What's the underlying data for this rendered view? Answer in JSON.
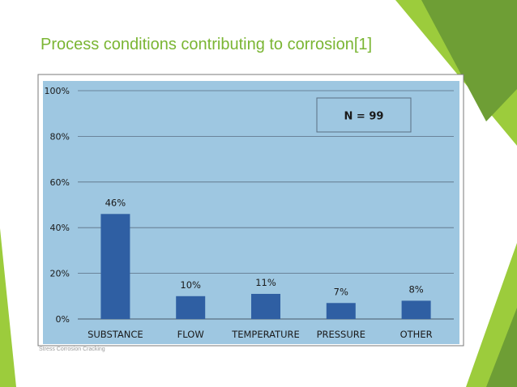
{
  "slide": {
    "title": "Process conditions contributing to corrosion[1]",
    "footer": "Stress Corrosion Cracking"
  },
  "colors": {
    "title": "#7ab533",
    "plot_background": "#9ec7e1",
    "bar": "#2f5fa3",
    "grid": "#5a6f82",
    "accent_green_dark": "#5d8f2f",
    "accent_green_light": "#9ccc3c"
  },
  "chart_data": {
    "type": "bar",
    "categories": [
      "SUBSTANCE",
      "FLOW",
      "TEMPERATURE",
      "PRESSURE",
      "OTHER"
    ],
    "values": [
      46,
      10,
      11,
      7,
      8
    ],
    "data_labels": [
      "46%",
      "10%",
      "11%",
      "7%",
      "8%"
    ],
    "ylim": [
      0,
      100
    ],
    "yticks": [
      "0%",
      "20%",
      "40%",
      "60%",
      "80%",
      "100%"
    ],
    "ytick_values": [
      0,
      20,
      40,
      60,
      80,
      100
    ],
    "annotation": "N = 99",
    "annotation_position": "top-right",
    "grid": true,
    "legend": "none"
  }
}
